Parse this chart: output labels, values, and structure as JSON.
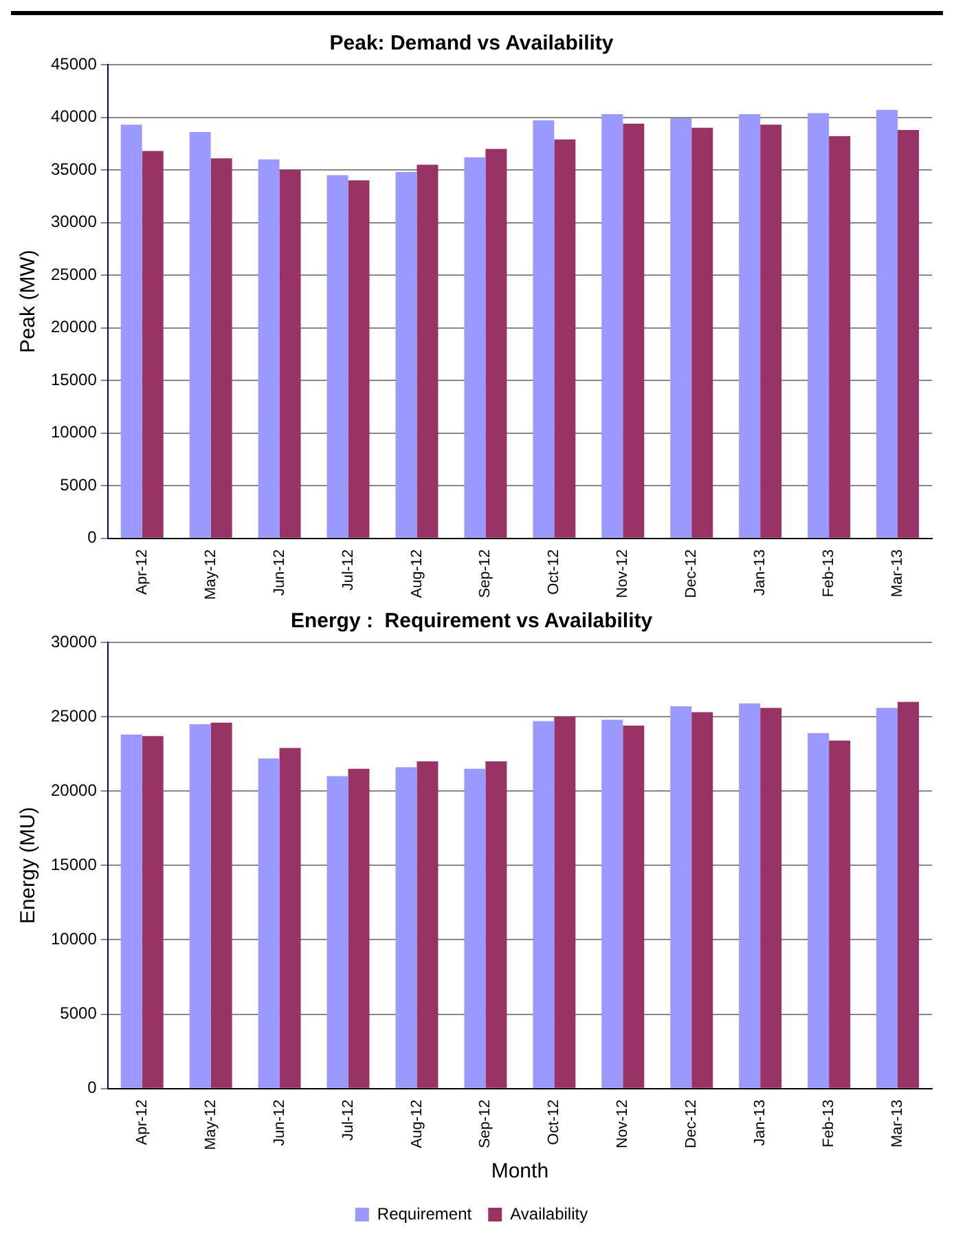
{
  "chart_data": [
    {
      "type": "bar",
      "title": "Peak: Demand vs Availability",
      "ylabel": "Peak (MW)",
      "categories": [
        "Apr-12",
        "May-12",
        "Jun-12",
        "Jul-12",
        "Aug-12",
        "Sep-12",
        "Oct-12",
        "Nov-12",
        "Dec-12",
        "Jan-13",
        "Feb-13",
        "Mar-13"
      ],
      "series": [
        {
          "color": "#9999ff",
          "values": [
            39300,
            38600,
            36000,
            34500,
            34800,
            36200,
            39700,
            40300,
            39900,
            40300,
            40400,
            40700
          ]
        },
        {
          "color": "#993366",
          "values": [
            36800,
            36100,
            35000,
            34000,
            35500,
            37000,
            37900,
            39400,
            39000,
            39300,
            38200,
            38800
          ]
        }
      ],
      "ylim": [
        0,
        45000
      ],
      "yticks": [
        0,
        5000,
        10000,
        15000,
        20000,
        25000,
        30000,
        35000,
        40000,
        45000
      ],
      "grid": "y",
      "legend": false
    },
    {
      "type": "bar",
      "title": "Energy :  Requirement vs Availability",
      "xlabel": "Month",
      "ylabel": "Energy (MU)",
      "categories": [
        "Apr-12",
        "May-12",
        "Jun-12",
        "Jul-12",
        "Aug-12",
        "Sep-12",
        "Oct-12",
        "Nov-12",
        "Dec-12",
        "Jan-13",
        "Feb-13",
        "Mar-13"
      ],
      "series": [
        {
          "name": "Requirement",
          "color": "#9999ff",
          "values": [
            23800,
            24500,
            22200,
            21000,
            21600,
            21500,
            24700,
            24800,
            25700,
            25900,
            23900,
            25600
          ]
        },
        {
          "name": "Availability",
          "color": "#993366",
          "values": [
            23700,
            24600,
            22900,
            21500,
            22000,
            22000,
            25000,
            24400,
            25300,
            25600,
            23400,
            26000
          ]
        }
      ],
      "ylim": [
        0,
        30000
      ],
      "yticks": [
        0,
        5000,
        10000,
        15000,
        20000,
        25000,
        30000
      ],
      "grid": "y",
      "legend": "bottom"
    }
  ]
}
